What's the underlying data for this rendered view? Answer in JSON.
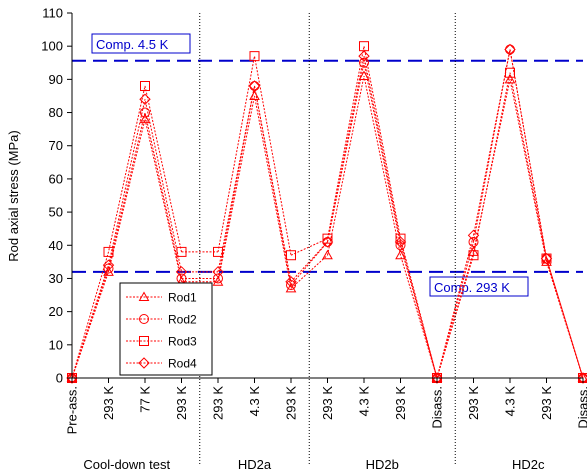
{
  "chart_data": {
    "type": "line",
    "ylabel": "Rod axial stress (MPa)",
    "ylim": [
      0,
      110
    ],
    "yticks": [
      0,
      10,
      20,
      30,
      40,
      50,
      60,
      70,
      80,
      90,
      100,
      110
    ],
    "categories": [
      "Pre-ass.",
      "293 K",
      "77 K",
      "293 K",
      "293 K",
      "4.3 K",
      "293 K",
      "293 K",
      "4.3 K",
      "293 K",
      "Disass.",
      "293 K",
      "4.3 K",
      "293 K",
      "Disass."
    ],
    "groups": [
      {
        "label": "Cool-down test",
        "start": 0,
        "end": 3
      },
      {
        "label": "HD2a",
        "start": 4,
        "end": 6
      },
      {
        "label": "HD2b",
        "start": 7,
        "end": 10
      },
      {
        "label": "HD2c",
        "start": 11,
        "end": 14
      }
    ],
    "segments": [
      [
        0,
        3
      ],
      [
        4,
        6
      ],
      [
        7,
        10
      ],
      [
        11,
        14
      ]
    ],
    "series": [
      {
        "name": "Rod1",
        "marker": "triangle",
        "values": [
          0,
          32,
          78,
          29,
          29,
          85,
          27,
          37,
          91,
          37,
          0,
          38,
          90,
          35,
          0
        ]
      },
      {
        "name": "Rod2",
        "marker": "circle",
        "values": [
          0,
          33,
          80,
          30,
          30,
          88,
          28,
          41,
          95,
          40,
          0,
          41,
          99,
          36,
          0
        ]
      },
      {
        "name": "Rod3",
        "marker": "square",
        "values": [
          0,
          38,
          88,
          38,
          38,
          97,
          37,
          42,
          100,
          42,
          0,
          37,
          92,
          36,
          0
        ]
      },
      {
        "name": "Rod4",
        "marker": "diamond",
        "values": [
          0,
          34,
          84,
          32,
          32,
          88,
          29,
          41,
          97,
          41,
          0,
          43,
          99,
          36,
          0
        ]
      }
    ],
    "reference_lines": [
      {
        "label": "Comp. 4.5 K",
        "value": 95.6,
        "color": "#0000cc"
      },
      {
        "label": "Comp. 293 K",
        "value": 32,
        "color": "#0000cc"
      }
    ],
    "legend_position": "bottom-left",
    "grid": false,
    "line_color": "#ff0000"
  }
}
